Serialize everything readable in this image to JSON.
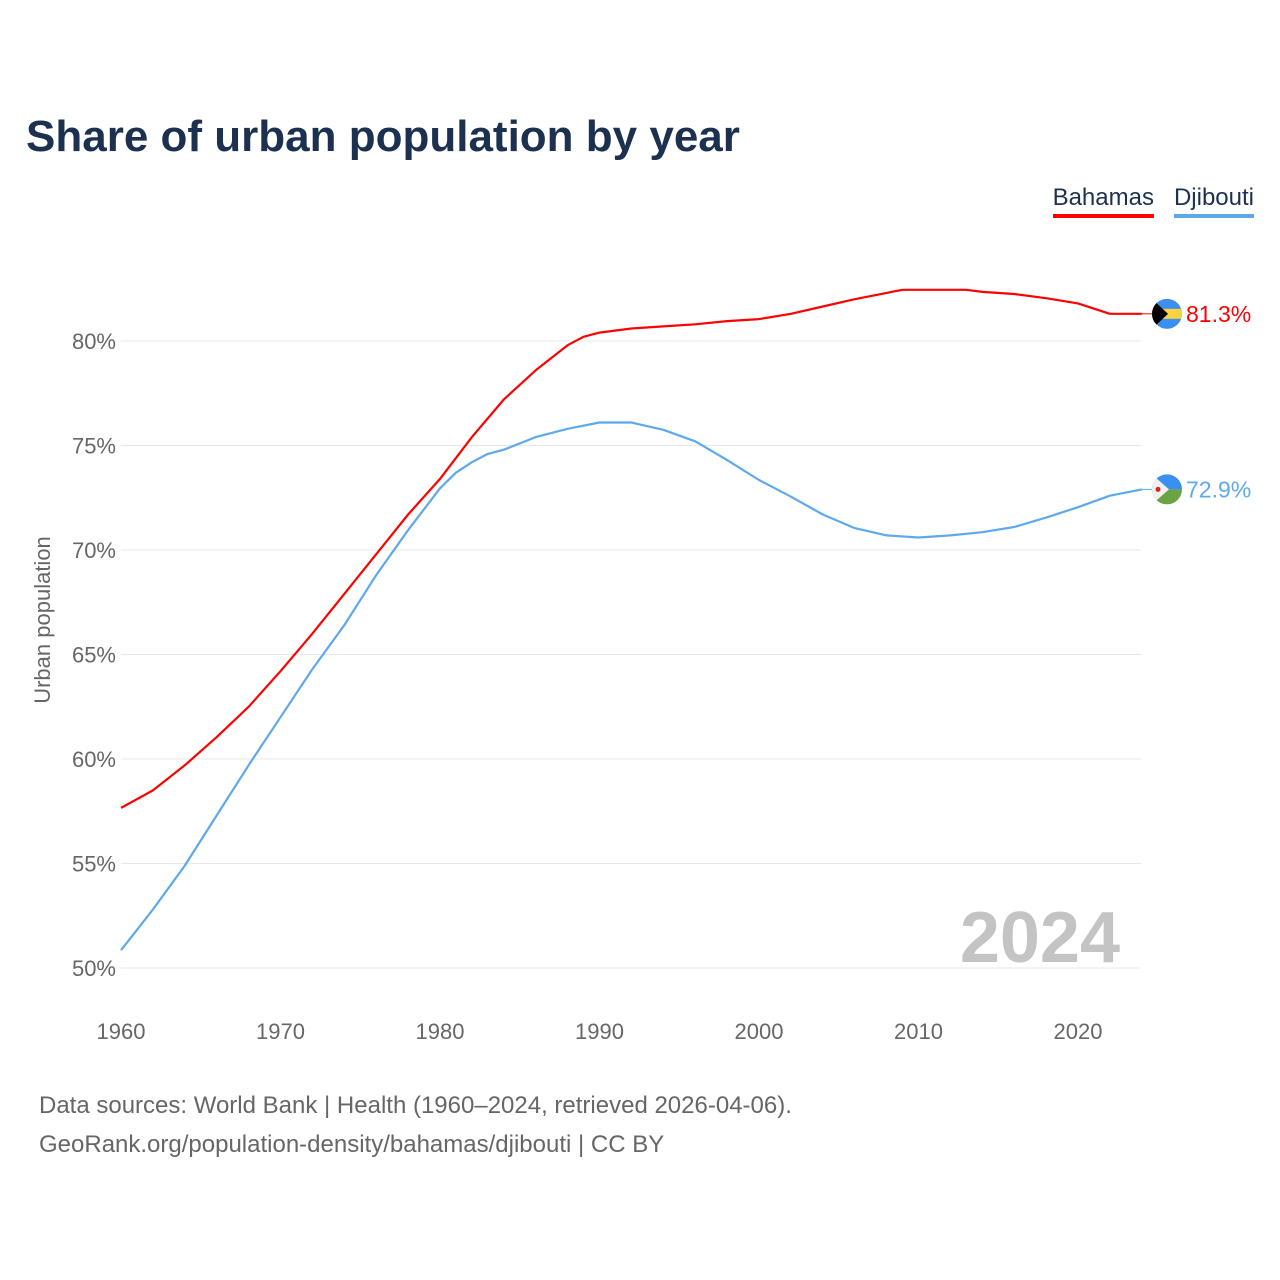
{
  "title": "Share of urban population by year",
  "legend": [
    {
      "name": "Bahamas",
      "color": "#ff0000"
    },
    {
      "name": "Djibouti",
      "color": "#5ea8ee"
    }
  ],
  "footer": {
    "line1": "Data sources: World Bank | Health (1960–2024, retrieved 2026-04-06).",
    "line2": "GeoRank.org/population-density/bahamas/djibouti | CC BY"
  },
  "chart_data": {
    "type": "line",
    "title": "Share of urban population by year",
    "xlabel": "",
    "ylabel": "Urban population",
    "xlim": [
      1960,
      2024
    ],
    "ylim": [
      50,
      84
    ],
    "xticks": [
      1960,
      1970,
      1980,
      1990,
      2000,
      2010,
      2020
    ],
    "xtick_labels": [
      "1960",
      "1970",
      "1980",
      "1990",
      "2000",
      "2010",
      "2020"
    ],
    "yticks": [
      50,
      55,
      60,
      65,
      70,
      75,
      80
    ],
    "ytick_labels": [
      "50%",
      "55%",
      "60%",
      "65%",
      "70%",
      "75%",
      "80%"
    ],
    "grid": true,
    "legend_position": "top-right",
    "watermark_year": "2024",
    "series": [
      {
        "name": "Bahamas",
        "color": "#ff0000",
        "end_label": "81.3%",
        "x": [
          1960,
          1962,
          1964,
          1966,
          1968,
          1970,
          1972,
          1974,
          1976,
          1978,
          1980,
          1982,
          1984,
          1986,
          1988,
          1989,
          1990,
          1992,
          1994,
          1996,
          1998,
          2000,
          2002,
          2004,
          2006,
          2008,
          2009,
          2010,
          2012,
          2013,
          2014,
          2016,
          2018,
          2020,
          2022,
          2024
        ],
        "values": [
          57.66,
          58.5,
          59.7,
          61.05,
          62.5,
          64.2,
          66.0,
          67.9,
          69.8,
          71.7,
          73.4,
          75.4,
          77.2,
          78.6,
          79.8,
          80.2,
          80.4,
          80.6,
          80.7,
          80.8,
          80.95,
          81.05,
          81.3,
          81.65,
          82.0,
          82.3,
          82.45,
          82.45,
          82.45,
          82.45,
          82.35,
          82.25,
          82.05,
          81.8,
          81.3,
          81.3
        ]
      },
      {
        "name": "Djibouti",
        "color": "#5ea8ee",
        "end_label": "72.9%",
        "x": [
          1960,
          1962,
          1964,
          1966,
          1968,
          1970,
          1972,
          1974,
          1976,
          1978,
          1980,
          1981,
          1982,
          1983,
          1984,
          1986,
          1988,
          1990,
          1992,
          1994,
          1996,
          1998,
          2000,
          2002,
          2004,
          2006,
          2008,
          2010,
          2012,
          2014,
          2016,
          2018,
          2020,
          2022,
          2024
        ],
        "values": [
          50.85,
          52.8,
          54.9,
          57.3,
          59.7,
          62.0,
          64.3,
          66.4,
          68.8,
          70.95,
          72.95,
          73.7,
          74.2,
          74.6,
          74.8,
          75.4,
          75.8,
          76.1,
          76.1,
          75.75,
          75.2,
          74.3,
          73.35,
          72.55,
          71.7,
          71.05,
          70.7,
          70.6,
          70.7,
          70.85,
          71.1,
          71.55,
          72.05,
          72.6,
          72.9
        ]
      }
    ]
  }
}
